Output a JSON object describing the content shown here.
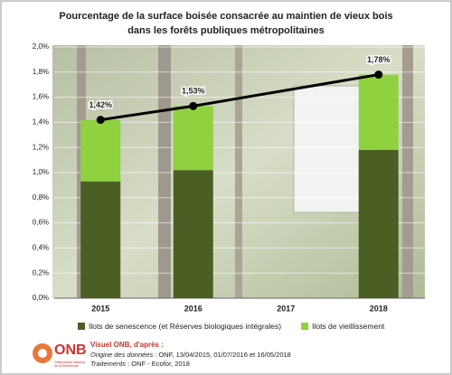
{
  "chart_data": {
    "type": "bar",
    "title": [
      "Pourcentage de la surface boisée consacrée au maintien de vieux bois",
      "dans les forêts publiques métropolitaines"
    ],
    "categories": [
      "2015",
      "2016",
      "2017",
      "2018"
    ],
    "stacked": true,
    "series": [
      {
        "name": "Ilots de senescence (et Réserves biologiques intégrales)",
        "color": "#4b5f24",
        "values": [
          0.93,
          1.02,
          null,
          1.18
        ]
      },
      {
        "name": "Ilots de vieillissement",
        "color": "#8fd13f",
        "values": [
          0.49,
          0.51,
          null,
          0.6
        ]
      }
    ],
    "line": {
      "color": "#000000",
      "categories": [
        "2015",
        "2016",
        "2018"
      ],
      "values": [
        1.42,
        1.53,
        1.78
      ],
      "value_labels": [
        "1,42%",
        "1,53%",
        "1,78%"
      ]
    },
    "ylim": [
      0,
      2.0
    ],
    "yticks": [
      {
        "value": 0,
        "label": "0,0%"
      },
      {
        "value": 0.2,
        "label": "0,2%"
      },
      {
        "value": 0.4,
        "label": "0,4%"
      },
      {
        "value": 0.6,
        "label": "0,6%"
      },
      {
        "value": 0.8,
        "label": "0,8%"
      },
      {
        "value": 1.0,
        "label": "1,0%"
      },
      {
        "value": 1.2,
        "label": "1,2%"
      },
      {
        "value": 1.4,
        "label": "1,4%"
      },
      {
        "value": 1.6,
        "label": "1,6%"
      },
      {
        "value": 1.8,
        "label": "1,8%"
      },
      {
        "value": 2.0,
        "label": "2,0%"
      }
    ],
    "grid": true,
    "legend": "bottom"
  },
  "footer": {
    "logo": "ONB",
    "logo_sub": [
      "Observatoire National",
      "de la Biodiversité"
    ],
    "heading": "Visuel ONB, d'après :",
    "lines": [
      {
        "label": "Origine des données",
        "text": " : ONF, 13/04/2015, 01/07/2016 et 16/05/2018"
      },
      {
        "label": "Traitements",
        "text": " : ONF - Ecofor, 2018"
      }
    ]
  }
}
